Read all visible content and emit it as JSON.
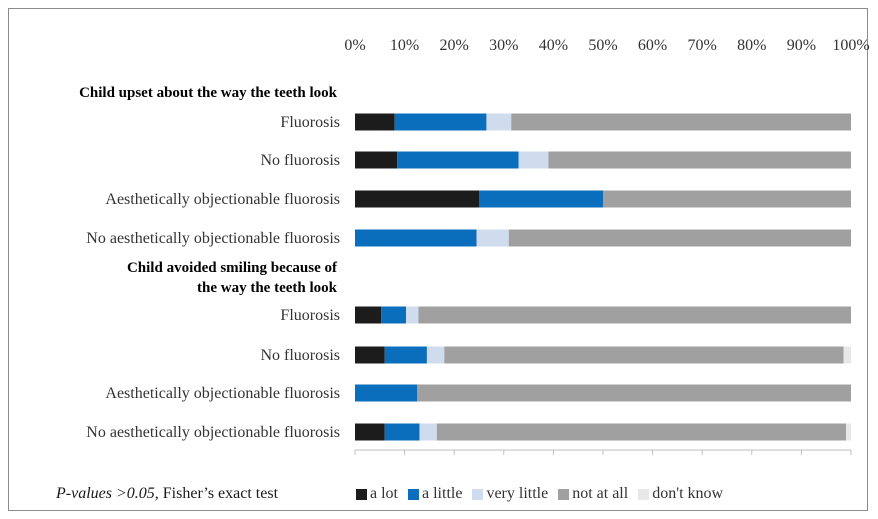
{
  "chart_data": {
    "type": "bar",
    "orientation": "horizontal",
    "stacked": true,
    "x_ticks": [
      "0%",
      "10%",
      "20%",
      "30%",
      "40%",
      "50%",
      "60%",
      "70%",
      "80%",
      "90%",
      "100%"
    ],
    "xlim": [
      0,
      100
    ],
    "grid": false,
    "legend_position": "bottom",
    "sections": [
      {
        "title": "Child upset about the way the teeth look",
        "categories": [
          "Fluorosis",
          "No fluorosis",
          "Aesthetically objectionable fluorosis",
          "No aesthetically objectionable fluorosis"
        ]
      },
      {
        "title": "Child avoided smiling because of the way the teeth look",
        "categories": [
          "Fluorosis",
          "No fluorosis",
          "Aesthetically objectionable fluorosis",
          "No aesthetically objectionable fluorosis"
        ]
      }
    ],
    "series": [
      {
        "name": "a lot",
        "color": "#1c1c1c",
        "values": [
          8,
          8.5,
          25,
          0,
          5.3,
          6,
          0,
          6
        ]
      },
      {
        "name": "a little",
        "color": "#0a6ebd",
        "values": [
          18.5,
          24.5,
          25,
          24.5,
          5,
          8.5,
          12.5,
          7
        ]
      },
      {
        "name": "very little",
        "color": "#cfdcee",
        "values": [
          5,
          6,
          0,
          6.5,
          2.5,
          3.5,
          0,
          3.5
        ]
      },
      {
        "name": "not at all",
        "color": "#a0a0a0",
        "values": [
          68.5,
          61,
          50,
          69,
          87.2,
          80.5,
          87.5,
          82.5
        ]
      },
      {
        "name": "don't know",
        "color": "#e8e8e8",
        "values": [
          0,
          0,
          0,
          0,
          0,
          1.5,
          0,
          1
        ]
      }
    ]
  },
  "footnote": {
    "pvalue_text": "P-values >0.05",
    "test_text": ", Fisher’s exact test"
  }
}
